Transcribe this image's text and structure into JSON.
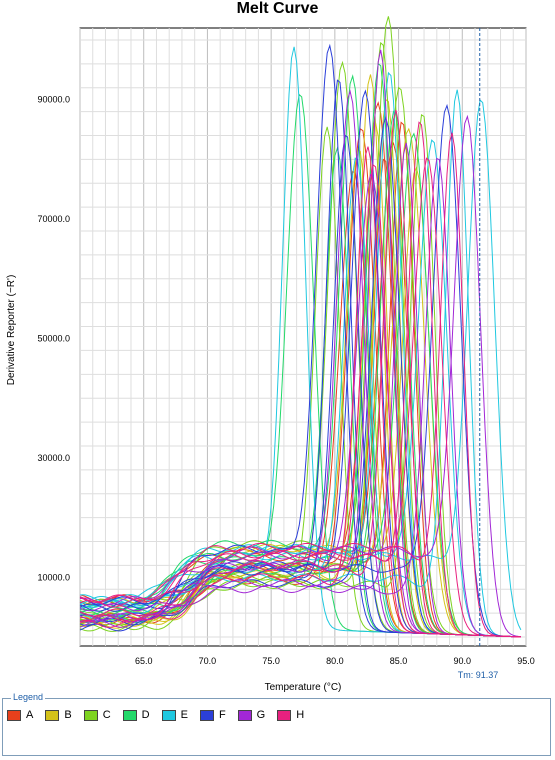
{
  "chart_data": {
    "type": "line",
    "title": "Melt Curve",
    "xlabel": "Temperature (°C)",
    "ylabel": "Derivative Reporter (−R')",
    "xlim": [
      60.0,
      95.0
    ],
    "ylim": [
      -1500,
      102000
    ],
    "x_ticks": [
      "65.0",
      "70.0",
      "75.0",
      "80.0",
      "85.0",
      "90.0",
      "95.0"
    ],
    "x_tick_values": [
      65,
      70,
      75,
      80,
      85,
      90,
      95
    ],
    "y_ticks": [
      "10000.0",
      "30000.0",
      "50000.0",
      "70000.0",
      "90000.0"
    ],
    "y_tick_values": [
      10000,
      30000,
      50000,
      70000,
      90000
    ],
    "grid": true,
    "threshold_marker": {
      "label": "Tm: 91.37",
      "x": 91.37
    },
    "legend_position": "bottom",
    "series": [
      {
        "name": "A",
        "color": "#e8401c",
        "peaks": [
          [
            82.1,
            83000
          ],
          [
            83.4,
            87000
          ],
          [
            84.6,
            80000
          ],
          [
            81.5,
            76000
          ],
          [
            85.3,
            84000
          ],
          [
            83.9,
            78000
          ]
        ]
      },
      {
        "name": "B",
        "color": "#d4c21a",
        "peaks": [
          [
            82.8,
            92000
          ],
          [
            84.1,
            88000
          ],
          [
            83.2,
            84000
          ],
          [
            85.8,
            83000
          ],
          [
            81.9,
            79000
          ],
          [
            86.4,
            76000
          ]
        ]
      },
      {
        "name": "C",
        "color": "#7ed321",
        "peaks": [
          [
            84.2,
            102000
          ],
          [
            80.6,
            94000
          ],
          [
            83.7,
            97000
          ],
          [
            86.9,
            86000
          ],
          [
            79.4,
            83000
          ],
          [
            85.1,
            90000
          ]
        ]
      },
      {
        "name": "D",
        "color": "#23d96a",
        "peaks": [
          [
            77.3,
            88000
          ],
          [
            83.5,
            94000
          ],
          [
            81.4,
            91000
          ],
          [
            86.2,
            82000
          ],
          [
            84.7,
            86000
          ],
          [
            80.2,
            79000
          ]
        ]
      },
      {
        "name": "E",
        "color": "#1fc8e0",
        "peaks": [
          [
            76.8,
            96000
          ],
          [
            91.5,
            88000
          ],
          [
            89.6,
            90000
          ],
          [
            84.3,
            92000
          ],
          [
            81.7,
            78000
          ],
          [
            87.7,
            81000
          ]
        ]
      },
      {
        "name": "F",
        "color": "#2b3fd9",
        "peaks": [
          [
            79.6,
            96000
          ],
          [
            80.3,
            91000
          ],
          [
            82.4,
            89000
          ],
          [
            84.0,
            85000
          ],
          [
            88.8,
            87000
          ],
          [
            80.9,
            82000
          ]
        ]
      },
      {
        "name": "G",
        "color": "#a227d6",
        "peaks": [
          [
            83.6,
            96000
          ],
          [
            90.4,
            85000
          ],
          [
            81.2,
            89000
          ],
          [
            88.1,
            79000
          ],
          [
            85.6,
            81000
          ],
          [
            82.9,
            75000
          ]
        ]
      },
      {
        "name": "H",
        "color": "#e8217f",
        "peaks": [
          [
            84.8,
            86000
          ],
          [
            89.2,
            82000
          ],
          [
            82.6,
            80000
          ],
          [
            86.7,
            84000
          ],
          [
            83.1,
            77000
          ],
          [
            87.3,
            78000
          ]
        ]
      }
    ]
  }
}
